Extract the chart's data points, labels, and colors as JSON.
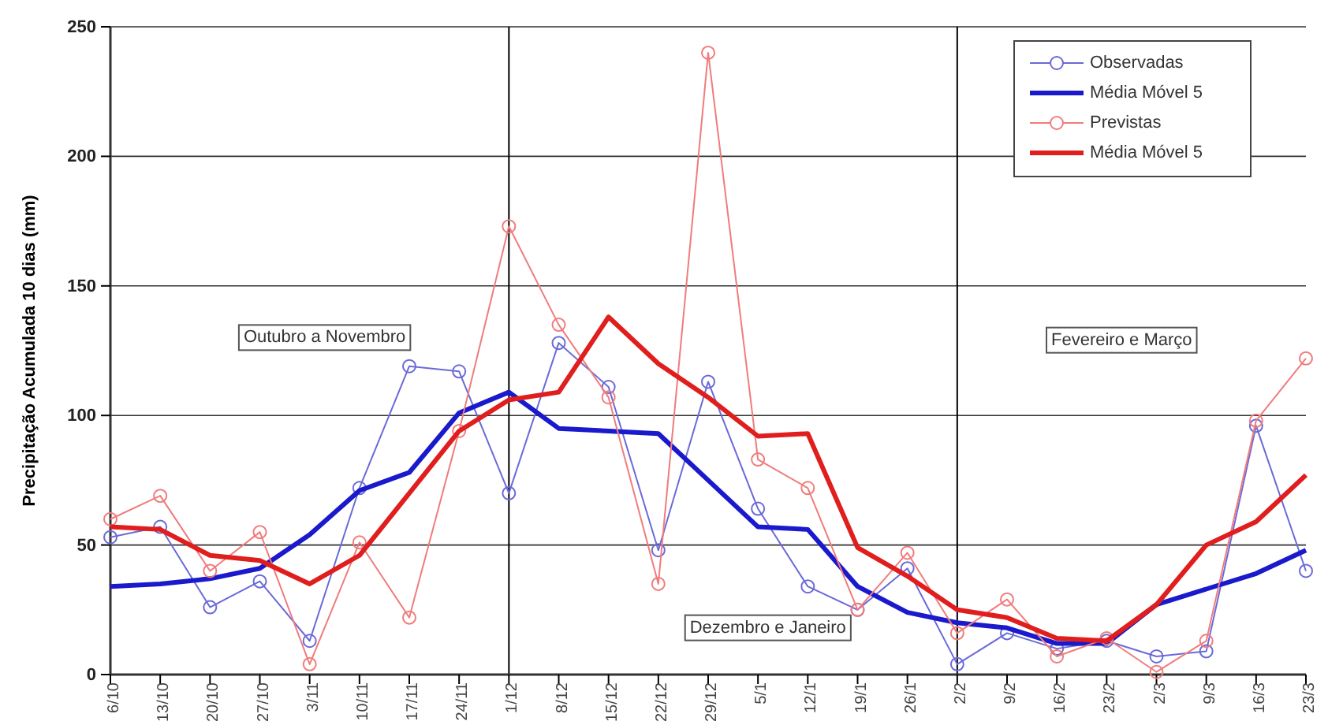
{
  "chart_data": {
    "type": "line",
    "ylabel": "Precipitação Acumulada 10 dias (mm)",
    "categories": [
      "6/10",
      "13/10",
      "20/10",
      "27/10",
      "3/11",
      "10/11",
      "17/11",
      "24/11",
      "1/12",
      "8/12",
      "15/12",
      "22/12",
      "29/12",
      "5/1",
      "12/1",
      "19/1",
      "26/1",
      "2/2",
      "9/2",
      "16/2",
      "23/2",
      "2/3",
      "9/3",
      "16/3",
      "23/3"
    ],
    "ylim": [
      0,
      250
    ],
    "yticks": [
      0,
      50,
      100,
      150,
      200,
      250
    ],
    "grid": "y",
    "legend": "top right",
    "series": [
      {
        "name": "Observadas",
        "color": "#6a6ad8",
        "marker": "circle",
        "values": [
          53,
          57,
          26,
          36,
          13,
          72,
          119,
          117,
          70,
          128,
          111,
          48,
          113,
          64,
          34,
          25,
          41,
          4,
          16,
          10,
          13,
          7,
          9,
          96,
          40
        ]
      },
      {
        "name": "Média Móvel 5",
        "color": "#1a1acc",
        "marker": "none",
        "values": [
          34,
          35,
          37,
          41,
          54,
          71,
          78,
          101,
          109,
          95,
          94,
          93,
          75,
          57,
          56,
          34,
          24,
          20,
          18,
          12,
          12,
          27,
          33,
          39,
          48
        ]
      },
      {
        "name": "Previstas",
        "color": "#f07c7c",
        "marker": "circle",
        "values": [
          60,
          69,
          40,
          55,
          4,
          51,
          22,
          94,
          173,
          135,
          107,
          35,
          240,
          83,
          72,
          25,
          47,
          16,
          29,
          7,
          14,
          1,
          13,
          98,
          122
        ]
      },
      {
        "name": "Média Móvel 5",
        "color": "#e01e1e",
        "marker": "none",
        "values": [
          57,
          56,
          46,
          44,
          35,
          46,
          70,
          94,
          106,
          109,
          138,
          120,
          107,
          92,
          93,
          49,
          38,
          25,
          22,
          14,
          13,
          27,
          50,
          59,
          77
        ]
      }
    ],
    "ref_lines": [
      {
        "axis": "x",
        "value": "1/12",
        "color": "#000000"
      },
      {
        "axis": "x",
        "value": "2/2",
        "color": "#000000"
      }
    ],
    "annotations": [
      "Outubro a Novembro",
      "Dezembro e Janeiro",
      "Fevereiro e Março"
    ]
  }
}
